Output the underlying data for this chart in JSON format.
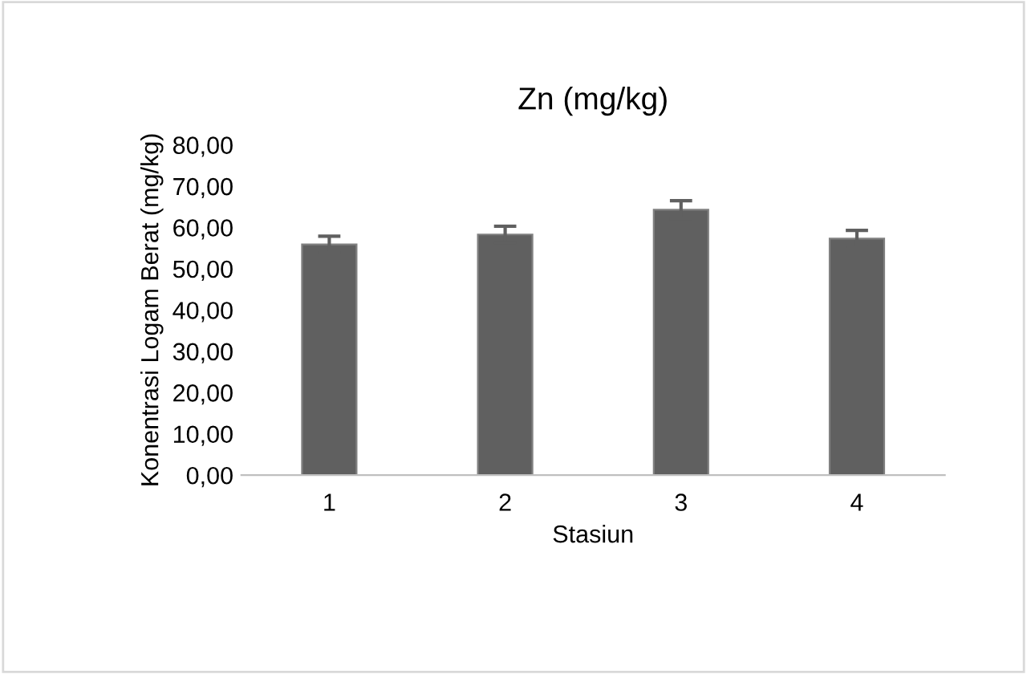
{
  "chart_data": {
    "type": "bar",
    "title": "Zn (mg/kg)",
    "xlabel": "Stasiun",
    "ylabel": "Konentrasi Logam Berat (mg/kg)",
    "categories": [
      "1",
      "2",
      "3",
      "4"
    ],
    "values": [
      55.9,
      58.3,
      64.3,
      57.3
    ],
    "errors": [
      2.0,
      2.0,
      2.2,
      2.0
    ],
    "color": "#606060",
    "ylim": [
      0,
      80
    ],
    "yticks": [
      {
        "value": 0,
        "label": "0,00"
      },
      {
        "value": 10,
        "label": "10,00"
      },
      {
        "value": 20,
        "label": "20,00"
      },
      {
        "value": 30,
        "label": "30,00"
      },
      {
        "value": 40,
        "label": "40,00"
      },
      {
        "value": 50,
        "label": "50,00"
      },
      {
        "value": 60,
        "label": "60,00"
      },
      {
        "value": 70,
        "label": "70,00"
      },
      {
        "value": 80,
        "label": "80,00"
      }
    ],
    "grid": false,
    "legend": false
  }
}
